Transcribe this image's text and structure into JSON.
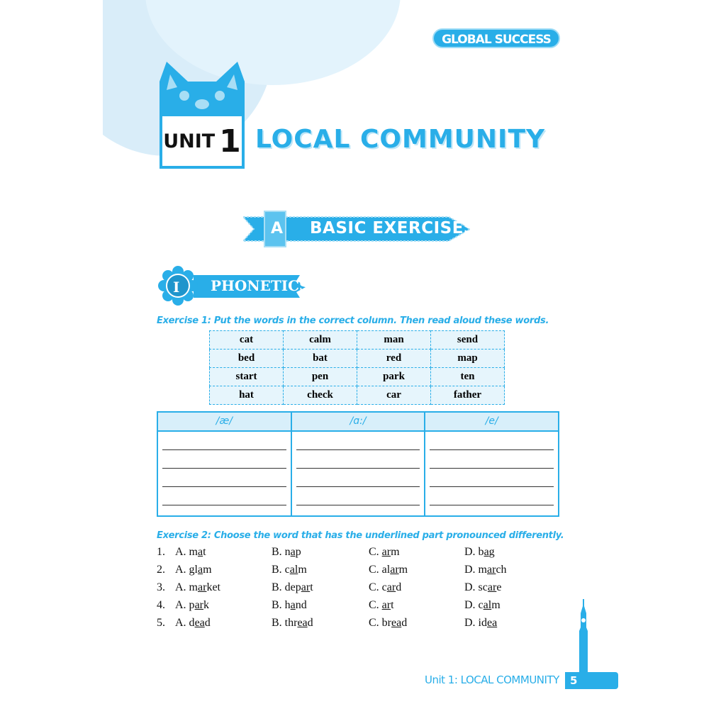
{
  "logo": "GLOBAL SUCCESS",
  "unit": {
    "label": "UNIT",
    "number": "1",
    "title": "LOCAL COMMUNITY"
  },
  "section": {
    "letter": "A",
    "title": "BASIC EXERCISES"
  },
  "part": {
    "numeral": "I",
    "title": "PHONETICS"
  },
  "exercise1": {
    "instruction": "Exercise 1: Put the words in the correct column. Then read aloud these words.",
    "words": [
      [
        "cat",
        "calm",
        "man",
        "send"
      ],
      [
        "bed",
        "bat",
        "red",
        "map"
      ],
      [
        "start",
        "pen",
        "park",
        "ten"
      ],
      [
        "hat",
        "check",
        "car",
        "father"
      ]
    ],
    "columns": [
      "/æ/",
      "/ɑ:/",
      "/e/"
    ]
  },
  "exercise2": {
    "instruction": "Exercise 2: Choose the word that has the underlined part pronounced differently.",
    "questions": [
      {
        "n": "1.",
        "options": [
          [
            "A. m",
            "a",
            "t"
          ],
          [
            "B. n",
            "a",
            "p"
          ],
          [
            "C. ",
            "ar",
            "m"
          ],
          [
            "D. b",
            "a",
            "g"
          ]
        ]
      },
      {
        "n": "2.",
        "options": [
          [
            "A. gl",
            "a",
            "m"
          ],
          [
            "B. c",
            "al",
            "m"
          ],
          [
            "C. al",
            "ar",
            "m"
          ],
          [
            "D. m",
            "ar",
            "ch"
          ]
        ]
      },
      {
        "n": "3.",
        "options": [
          [
            "A. m",
            "ar",
            "ket"
          ],
          [
            "B. dep",
            "ar",
            "t"
          ],
          [
            "C. c",
            "ar",
            "d"
          ],
          [
            "D. sc",
            "ar",
            "e"
          ]
        ]
      },
      {
        "n": "4.",
        "options": [
          [
            "A. p",
            "ar",
            "k"
          ],
          [
            "B. h",
            "a",
            "nd"
          ],
          [
            "C. ",
            "ar",
            "t"
          ],
          [
            "D. c",
            "al",
            "m"
          ]
        ]
      },
      {
        "n": "5.",
        "options": [
          [
            "A. d",
            "ea",
            "d"
          ],
          [
            "B. thr",
            "ea",
            "d"
          ],
          [
            "C. br",
            "ea",
            "d"
          ],
          [
            "D. id",
            "ea",
            ""
          ]
        ]
      }
    ]
  },
  "footer": {
    "text": "Unit 1: LOCAL COMMUNITY",
    "page": "5"
  },
  "colors": {
    "accent": "#29aee8",
    "light": "#d8effa"
  }
}
